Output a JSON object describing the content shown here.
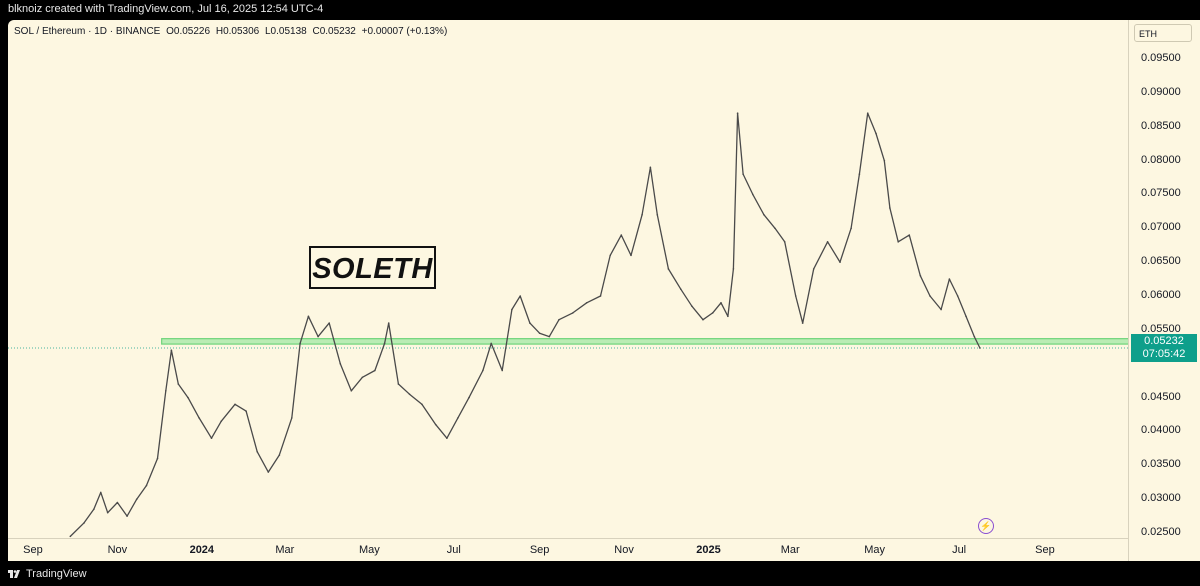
{
  "header": {
    "credit": "blknoiz created with TradingView.com, Jul 16, 2025 12:54 UTC-4"
  },
  "legend": {
    "symbol": "SOL / Ethereum · 1D · BINANCE",
    "open": "O0.05226",
    "high": "H0.05306",
    "low": "L0.05138",
    "close": "C0.05232",
    "change": "+0.00007 (+0.13%)"
  },
  "price_axis": {
    "currency": "ETH",
    "ticks": [
      "0.09500",
      "0.09000",
      "0.08500",
      "0.08000",
      "0.07500",
      "0.07000",
      "0.06500",
      "0.06000",
      "0.05500",
      "0.04500",
      "0.04000",
      "0.03500",
      "0.03000",
      "0.02500"
    ],
    "last_price": "0.05232",
    "countdown": "07:05:42"
  },
  "time_axis": {
    "labels": [
      "Sep",
      "Nov",
      "2024",
      "Mar",
      "May",
      "Jul",
      "Sep",
      "Nov",
      "2025",
      "Mar",
      "May",
      "Jul",
      "Sep"
    ],
    "bold": [
      "2024",
      "2025"
    ]
  },
  "annotation": {
    "text": "SOLETH"
  },
  "footer": {
    "brand": "TradingView"
  },
  "colors": {
    "background": "#fdf7e1",
    "line": "#4a4a4a",
    "zone": "#6fd47a",
    "price_tag": "#0e9f8b"
  },
  "chart_data": {
    "type": "line",
    "title": "SOL / Ethereum · 1D · BINANCE",
    "xlabel": "",
    "ylabel": "",
    "ylim": [
      0.0225,
      0.097
    ],
    "grid": false,
    "support_zone": [
      0.0529,
      0.0537
    ],
    "series": [
      {
        "values": [
          {
            "x": "2023-09-28",
            "y": 0.0245
          },
          {
            "x": "2023-10-08",
            "y": 0.0265
          },
          {
            "x": "2023-10-15",
            "y": 0.0285
          },
          {
            "x": "2023-10-20",
            "y": 0.031
          },
          {
            "x": "2023-10-25",
            "y": 0.028
          },
          {
            "x": "2023-11-01",
            "y": 0.0295
          },
          {
            "x": "2023-11-08",
            "y": 0.0275
          },
          {
            "x": "2023-11-15",
            "y": 0.03
          },
          {
            "x": "2023-11-22",
            "y": 0.032
          },
          {
            "x": "2023-11-30",
            "y": 0.036
          },
          {
            "x": "2023-12-06",
            "y": 0.046
          },
          {
            "x": "2023-12-10",
            "y": 0.052
          },
          {
            "x": "2023-12-15",
            "y": 0.047
          },
          {
            "x": "2023-12-22",
            "y": 0.045
          },
          {
            "x": "2023-12-30",
            "y": 0.042
          },
          {
            "x": "2024-01-08",
            "y": 0.039
          },
          {
            "x": "2024-01-15",
            "y": 0.0415
          },
          {
            "x": "2024-01-25",
            "y": 0.044
          },
          {
            "x": "2024-02-02",
            "y": 0.043
          },
          {
            "x": "2024-02-10",
            "y": 0.037
          },
          {
            "x": "2024-02-18",
            "y": 0.034
          },
          {
            "x": "2024-02-26",
            "y": 0.0365
          },
          {
            "x": "2024-03-06",
            "y": 0.042
          },
          {
            "x": "2024-03-12",
            "y": 0.053
          },
          {
            "x": "2024-03-18",
            "y": 0.057
          },
          {
            "x": "2024-03-25",
            "y": 0.054
          },
          {
            "x": "2024-04-02",
            "y": 0.056
          },
          {
            "x": "2024-04-10",
            "y": 0.05
          },
          {
            "x": "2024-04-18",
            "y": 0.046
          },
          {
            "x": "2024-04-26",
            "y": 0.048
          },
          {
            "x": "2024-05-05",
            "y": 0.049
          },
          {
            "x": "2024-05-12",
            "y": 0.053
          },
          {
            "x": "2024-05-15",
            "y": 0.056
          },
          {
            "x": "2024-05-22",
            "y": 0.047
          },
          {
            "x": "2024-05-30",
            "y": 0.0455
          },
          {
            "x": "2024-06-08",
            "y": 0.044
          },
          {
            "x": "2024-06-18",
            "y": 0.041
          },
          {
            "x": "2024-06-26",
            "y": 0.039
          },
          {
            "x": "2024-07-04",
            "y": 0.042
          },
          {
            "x": "2024-07-12",
            "y": 0.045
          },
          {
            "x": "2024-07-22",
            "y": 0.049
          },
          {
            "x": "2024-07-28",
            "y": 0.053
          },
          {
            "x": "2024-08-05",
            "y": 0.049
          },
          {
            "x": "2024-08-12",
            "y": 0.058
          },
          {
            "x": "2024-08-18",
            "y": 0.06
          },
          {
            "x": "2024-08-25",
            "y": 0.056
          },
          {
            "x": "2024-09-01",
            "y": 0.0545
          },
          {
            "x": "2024-09-08",
            "y": 0.054
          },
          {
            "x": "2024-09-15",
            "y": 0.0565
          },
          {
            "x": "2024-09-25",
            "y": 0.0575
          },
          {
            "x": "2024-10-05",
            "y": 0.059
          },
          {
            "x": "2024-10-15",
            "y": 0.06
          },
          {
            "x": "2024-10-22",
            "y": 0.066
          },
          {
            "x": "2024-10-30",
            "y": 0.069
          },
          {
            "x": "2024-11-06",
            "y": 0.066
          },
          {
            "x": "2024-11-14",
            "y": 0.072
          },
          {
            "x": "2024-11-20",
            "y": 0.079
          },
          {
            "x": "2024-11-25",
            "y": 0.072
          },
          {
            "x": "2024-12-03",
            "y": 0.064
          },
          {
            "x": "2024-12-12",
            "y": 0.061
          },
          {
            "x": "2024-12-20",
            "y": 0.0585
          },
          {
            "x": "2024-12-28",
            "y": 0.0565
          },
          {
            "x": "2025-01-04",
            "y": 0.0575
          },
          {
            "x": "2025-01-10",
            "y": 0.059
          },
          {
            "x": "2025-01-15",
            "y": 0.057
          },
          {
            "x": "2025-01-19",
            "y": 0.064
          },
          {
            "x": "2025-01-22",
            "y": 0.087
          },
          {
            "x": "2025-01-26",
            "y": 0.078
          },
          {
            "x": "2025-02-02",
            "y": 0.075
          },
          {
            "x": "2025-02-10",
            "y": 0.072
          },
          {
            "x": "2025-02-18",
            "y": 0.07
          },
          {
            "x": "2025-02-25",
            "y": 0.068
          },
          {
            "x": "2025-03-05",
            "y": 0.06
          },
          {
            "x": "2025-03-10",
            "y": 0.056
          },
          {
            "x": "2025-03-18",
            "y": 0.064
          },
          {
            "x": "2025-03-28",
            "y": 0.068
          },
          {
            "x": "2025-04-06",
            "y": 0.065
          },
          {
            "x": "2025-04-14",
            "y": 0.07
          },
          {
            "x": "2025-04-20",
            "y": 0.078
          },
          {
            "x": "2025-04-26",
            "y": 0.087
          },
          {
            "x": "2025-05-02",
            "y": 0.084
          },
          {
            "x": "2025-05-08",
            "y": 0.08
          },
          {
            "x": "2025-05-12",
            "y": 0.073
          },
          {
            "x": "2025-05-18",
            "y": 0.068
          },
          {
            "x": "2025-05-26",
            "y": 0.069
          },
          {
            "x": "2025-06-03",
            "y": 0.063
          },
          {
            "x": "2025-06-10",
            "y": 0.06
          },
          {
            "x": "2025-06-18",
            "y": 0.058
          },
          {
            "x": "2025-06-24",
            "y": 0.0625
          },
          {
            "x": "2025-06-30",
            "y": 0.06
          },
          {
            "x": "2025-07-06",
            "y": 0.057
          },
          {
            "x": "2025-07-12",
            "y": 0.054
          },
          {
            "x": "2025-07-16",
            "y": 0.05232
          }
        ]
      }
    ]
  }
}
